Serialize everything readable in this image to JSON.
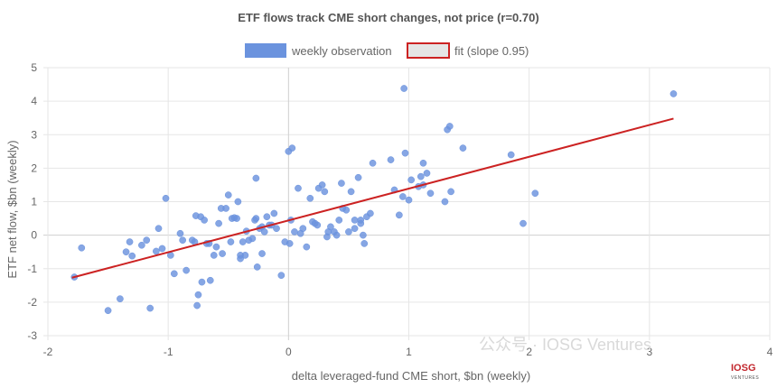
{
  "chart_data": {
    "type": "scatter",
    "title": "ETF flows track CME short changes, not price (r=0.70)",
    "xlabel": "delta leveraged-fund CME short, $bn (weekly)",
    "ylabel": "ETF net flow, $bn (weekly)",
    "xlim": [
      -2,
      4
    ],
    "ylim": [
      -3,
      5
    ],
    "x_ticks": [
      "-2",
      "-1",
      "0",
      "1",
      "2",
      "3",
      "4"
    ],
    "y_ticks": [
      "-3",
      "-2",
      "-1",
      "0",
      "1",
      "2",
      "3",
      "4",
      "5"
    ],
    "grid": true,
    "legend_position": "top",
    "series": [
      {
        "name": "weekly observation",
        "kind": "scatter",
        "color": "#6b93de",
        "points": [
          [
            -1.78,
            -1.25
          ],
          [
            -1.72,
            -0.38
          ],
          [
            -1.5,
            -2.25
          ],
          [
            -1.4,
            -1.9
          ],
          [
            -1.35,
            -0.5
          ],
          [
            -1.32,
            -0.2
          ],
          [
            -1.3,
            -0.62
          ],
          [
            -1.22,
            -0.3
          ],
          [
            -1.18,
            -0.15
          ],
          [
            -1.15,
            -2.18
          ],
          [
            -1.1,
            -0.48
          ],
          [
            -1.08,
            0.2
          ],
          [
            -1.05,
            -0.4
          ],
          [
            -1.02,
            1.1
          ],
          [
            -0.98,
            -0.6
          ],
          [
            -0.95,
            -1.15
          ],
          [
            -0.9,
            0.05
          ],
          [
            -0.88,
            -0.15
          ],
          [
            -0.85,
            -1.05
          ],
          [
            -0.8,
            -0.15
          ],
          [
            -0.78,
            -0.2
          ],
          [
            -0.77,
            0.58
          ],
          [
            -0.76,
            -2.1
          ],
          [
            -0.75,
            -1.78
          ],
          [
            -0.73,
            0.55
          ],
          [
            -0.72,
            -1.4
          ],
          [
            -0.7,
            0.45
          ],
          [
            -0.68,
            -0.25
          ],
          [
            -0.66,
            -0.25
          ],
          [
            -0.65,
            -1.35
          ],
          [
            -0.62,
            -0.6
          ],
          [
            -0.6,
            -0.35
          ],
          [
            -0.58,
            0.35
          ],
          [
            -0.56,
            0.8
          ],
          [
            -0.55,
            -0.55
          ],
          [
            -0.52,
            0.8
          ],
          [
            -0.5,
            1.2
          ],
          [
            -0.48,
            -0.2
          ],
          [
            -0.47,
            0.5
          ],
          [
            -0.45,
            0.52
          ],
          [
            -0.43,
            0.5
          ],
          [
            -0.42,
            1.0
          ],
          [
            -0.4,
            -0.7
          ],
          [
            -0.4,
            -0.6
          ],
          [
            -0.38,
            -0.2
          ],
          [
            -0.36,
            -0.6
          ],
          [
            -0.35,
            0.12
          ],
          [
            -0.33,
            -0.15
          ],
          [
            -0.3,
            -0.1
          ],
          [
            -0.28,
            0.45
          ],
          [
            -0.27,
            0.5
          ],
          [
            -0.27,
            1.7
          ],
          [
            -0.26,
            -0.95
          ],
          [
            -0.24,
            0.2
          ],
          [
            -0.22,
            0.25
          ],
          [
            -0.22,
            -0.55
          ],
          [
            -0.2,
            0.1
          ],
          [
            -0.18,
            0.55
          ],
          [
            -0.16,
            0.3
          ],
          [
            -0.14,
            0.3
          ],
          [
            -0.12,
            0.65
          ],
          [
            -0.1,
            0.2
          ],
          [
            -0.06,
            -1.2
          ],
          [
            -0.03,
            -0.2
          ],
          [
            0,
            2.5
          ],
          [
            0.01,
            -0.25
          ],
          [
            0.02,
            0.45
          ],
          [
            0.03,
            2.6
          ],
          [
            0.05,
            0.1
          ],
          [
            0.08,
            1.4
          ],
          [
            0.1,
            0.05
          ],
          [
            0.12,
            0.2
          ],
          [
            0.15,
            -0.35
          ],
          [
            0.18,
            1.1
          ],
          [
            0.2,
            0.4
          ],
          [
            0.22,
            0.35
          ],
          [
            0.24,
            0.3
          ],
          [
            0.25,
            1.4
          ],
          [
            0.28,
            1.5
          ],
          [
            0.3,
            1.3
          ],
          [
            0.32,
            -0.05
          ],
          [
            0.33,
            0.1
          ],
          [
            0.35,
            0.25
          ],
          [
            0.38,
            0.1
          ],
          [
            0.4,
            0.0
          ],
          [
            0.42,
            0.45
          ],
          [
            0.44,
            1.55
          ],
          [
            0.45,
            0.8
          ],
          [
            0.48,
            0.75
          ],
          [
            0.5,
            0.1
          ],
          [
            0.52,
            1.3
          ],
          [
            0.55,
            0.2
          ],
          [
            0.55,
            0.45
          ],
          [
            0.58,
            1.72
          ],
          [
            0.6,
            0.45
          ],
          [
            0.6,
            0.35
          ],
          [
            0.62,
            0.0
          ],
          [
            0.63,
            -0.25
          ],
          [
            0.65,
            0.55
          ],
          [
            0.68,
            0.65
          ],
          [
            0.7,
            2.15
          ],
          [
            0.85,
            2.25
          ],
          [
            0.88,
            1.35
          ],
          [
            0.92,
            0.6
          ],
          [
            0.95,
            1.15
          ],
          [
            0.96,
            4.38
          ],
          [
            0.97,
            2.45
          ],
          [
            1.0,
            1.05
          ],
          [
            1.02,
            1.65
          ],
          [
            1.08,
            1.45
          ],
          [
            1.1,
            1.75
          ],
          [
            1.12,
            2.15
          ],
          [
            1.12,
            1.5
          ],
          [
            1.15,
            1.85
          ],
          [
            1.18,
            1.25
          ],
          [
            1.3,
            1.0
          ],
          [
            1.32,
            3.15
          ],
          [
            1.34,
            3.25
          ],
          [
            1.35,
            1.3
          ],
          [
            1.45,
            2.6
          ],
          [
            1.85,
            2.4
          ],
          [
            1.95,
            0.35
          ],
          [
            2.05,
            1.25
          ],
          [
            3.2,
            4.22
          ]
        ]
      },
      {
        "name": "fit (slope 0.95)",
        "kind": "line",
        "color": "#cc2222",
        "points": [
          [
            -1.8,
            -1.27
          ],
          [
            3.2,
            3.48
          ]
        ]
      }
    ]
  },
  "watermark": {
    "text": "公众号 · IOSG Ventures"
  },
  "logo": {
    "top": "IOSG",
    "bottom": "VENTURES"
  }
}
